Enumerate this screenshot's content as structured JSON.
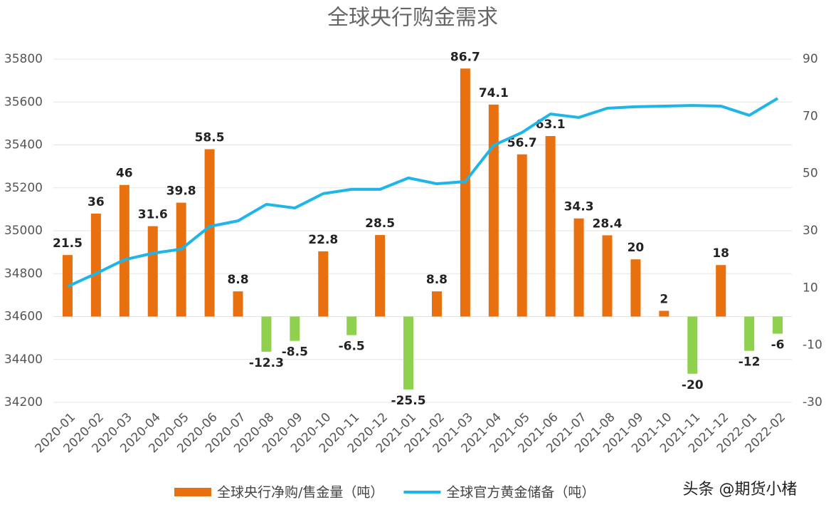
{
  "chart_data": {
    "type": "bar-line",
    "title": "全球央行购金需求",
    "categories": [
      "2020-01",
      "2020-02",
      "2020-03",
      "2020-04",
      "2020-05",
      "2020-06",
      "2020-07",
      "2020-08",
      "2020-09",
      "2020-10",
      "2020-11",
      "2020-12",
      "2021-01",
      "2021-02",
      "2021-03",
      "2021-04",
      "2021-05",
      "2021-06",
      "2021-07",
      "2021-08",
      "2021-09",
      "2021-10",
      "2021-11",
      "2021-12",
      "2022-01",
      "2022-02"
    ],
    "series": [
      {
        "name": "全球央行净购/售金量（吨）",
        "type": "bar",
        "axis": "y2",
        "color": "#e8700f",
        "negative_color": "#8fd14f",
        "values": [
          21.5,
          36,
          46,
          31.6,
          39.8,
          58.5,
          8.8,
          -12.3,
          -8.5,
          22.8,
          -6.5,
          28.5,
          -25.5,
          8.8,
          86.7,
          74.1,
          56.7,
          63.1,
          34.3,
          28.4,
          20,
          2,
          -20,
          18,
          -12,
          -6
        ]
      },
      {
        "name": "全球官方黄金储备（吨）",
        "type": "line",
        "axis": "y",
        "color": "#1fb5e8",
        "values": [
          34740,
          34800,
          34865,
          34895,
          34914,
          35020,
          35046,
          35123,
          35106,
          35173,
          35193,
          35193,
          35246,
          35219,
          35229,
          35398,
          35458,
          35544,
          35528,
          35571,
          35578,
          35581,
          35584,
          35581,
          35538,
          35617
        ]
      }
    ],
    "ylim": [
      34200,
      35800
    ],
    "yticks": [
      34200,
      34400,
      34600,
      34800,
      35000,
      35200,
      35400,
      35600,
      35800
    ],
    "y2lim": [
      -30,
      90
    ],
    "y2ticks": [
      -30,
      -10,
      10,
      30,
      50,
      70,
      90
    ],
    "grid": true,
    "watermark": "头条 @期货小楮"
  }
}
